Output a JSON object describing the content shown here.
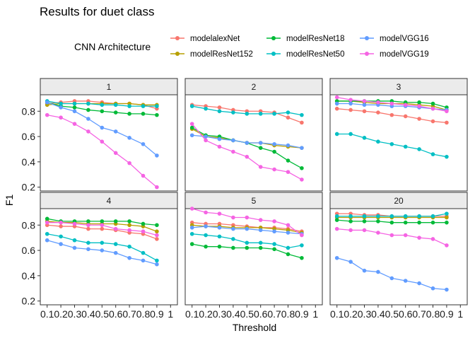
{
  "chart_data": {
    "type": "line",
    "title": "Results for duet class",
    "xlabel": "Threshold",
    "ylabel": "F1",
    "legend": {
      "title": "CNN Architecture",
      "placement": "top",
      "entries": [
        "modelalexNet",
        "modelResNet152",
        "modelResNet18",
        "modelResNet50",
        "modelVGG16",
        "modelVGG19"
      ]
    },
    "x_ticks": [
      "0.1",
      "0.2",
      "0.3",
      "0.4",
      "0.5",
      "0.6",
      "0.7",
      "0.8",
      "0.9",
      "1"
    ],
    "y_ticks": [
      "0.2",
      "0.4",
      "0.6",
      "0.8"
    ],
    "xlim": [
      0.05,
      1.05
    ],
    "ylim": [
      0.17,
      0.93
    ],
    "grid": false,
    "colors": {
      "modelalexNet": "#F8766D",
      "modelResNet152": "#B79F00",
      "modelResNet18": "#00BA38",
      "modelResNet50": "#00BFC4",
      "modelVGG16": "#619CFF",
      "modelVGG19": "#F564E3",
      "strip_fill": "#EBEBEB",
      "panel_border": "#333333"
    },
    "x": [
      0.1,
      0.2,
      0.3,
      0.4,
      0.5,
      0.6,
      0.7,
      0.8,
      0.9
    ],
    "facets": [
      {
        "label": "1",
        "series": [
          {
            "name": "modelalexNet",
            "values": [
              0.86,
              0.87,
              0.88,
              0.88,
              0.87,
              0.86,
              0.86,
              0.85,
              0.82
            ]
          },
          {
            "name": "modelResNet152",
            "values": [
              0.85,
              0.86,
              0.86,
              0.86,
              0.86,
              0.86,
              0.86,
              0.85,
              0.85
            ]
          },
          {
            "name": "modelResNet18",
            "values": [
              0.87,
              0.84,
              0.83,
              0.81,
              0.8,
              0.79,
              0.78,
              0.78,
              0.77
            ]
          },
          {
            "name": "modelResNet50",
            "values": [
              0.88,
              0.86,
              0.86,
              0.86,
              0.85,
              0.85,
              0.84,
              0.84,
              0.84
            ]
          },
          {
            "name": "modelVGG16",
            "values": [
              0.87,
              0.83,
              0.8,
              0.74,
              0.67,
              0.64,
              0.59,
              0.54,
              0.45
            ]
          },
          {
            "name": "modelVGG19",
            "values": [
              0.77,
              0.75,
              0.7,
              0.64,
              0.56,
              0.47,
              0.39,
              0.29,
              0.2
            ]
          }
        ]
      },
      {
        "label": "2",
        "series": [
          {
            "name": "modelalexNet",
            "values": [
              0.85,
              0.84,
              0.83,
              0.81,
              0.8,
              0.8,
              0.79,
              0.75,
              0.71
            ]
          },
          {
            "name": "modelResNet152",
            "values": [
              0.66,
              0.6,
              0.59,
              0.57,
              0.55,
              0.55,
              0.53,
              0.52,
              0.51
            ]
          },
          {
            "name": "modelResNet18",
            "values": [
              0.67,
              0.61,
              0.6,
              0.57,
              0.55,
              0.51,
              0.48,
              0.41,
              0.35
            ]
          },
          {
            "name": "modelResNet50",
            "values": [
              0.84,
              0.82,
              0.8,
              0.79,
              0.78,
              0.78,
              0.78,
              0.79,
              0.77
            ]
          },
          {
            "name": "modelVGG16",
            "values": [
              0.61,
              0.6,
              0.58,
              0.57,
              0.55,
              0.55,
              0.54,
              0.53,
              0.51
            ]
          },
          {
            "name": "modelVGG19",
            "values": [
              0.7,
              0.57,
              0.52,
              0.48,
              0.44,
              0.36,
              0.34,
              0.32,
              0.26
            ]
          }
        ]
      },
      {
        "label": "3",
        "series": [
          {
            "name": "modelalexNet",
            "values": [
              0.82,
              0.81,
              0.8,
              0.79,
              0.77,
              0.76,
              0.74,
              0.72,
              0.71
            ]
          },
          {
            "name": "modelResNet152",
            "values": [
              0.88,
              0.88,
              0.87,
              0.86,
              0.86,
              0.86,
              0.85,
              0.84,
              0.81
            ]
          },
          {
            "name": "modelResNet18",
            "values": [
              0.88,
              0.88,
              0.88,
              0.88,
              0.88,
              0.87,
              0.87,
              0.86,
              0.83
            ]
          },
          {
            "name": "modelResNet50",
            "values": [
              0.62,
              0.62,
              0.59,
              0.56,
              0.54,
              0.52,
              0.5,
              0.46,
              0.44
            ]
          },
          {
            "name": "modelVGG16",
            "values": [
              0.86,
              0.86,
              0.85,
              0.85,
              0.84,
              0.84,
              0.83,
              0.82,
              0.81
            ]
          },
          {
            "name": "modelVGG19",
            "values": [
              0.91,
              0.89,
              0.88,
              0.87,
              0.86,
              0.85,
              0.84,
              0.82,
              0.8
            ]
          }
        ]
      },
      {
        "label": "4",
        "series": [
          {
            "name": "modelalexNet",
            "values": [
              0.8,
              0.79,
              0.79,
              0.77,
              0.77,
              0.76,
              0.74,
              0.73,
              0.69
            ]
          },
          {
            "name": "modelResNet152",
            "values": [
              0.83,
              0.82,
              0.82,
              0.81,
              0.81,
              0.81,
              0.8,
              0.79,
              0.75
            ]
          },
          {
            "name": "modelResNet18",
            "values": [
              0.85,
              0.83,
              0.83,
              0.83,
              0.83,
              0.83,
              0.83,
              0.81,
              0.8
            ]
          },
          {
            "name": "modelResNet50",
            "values": [
              0.73,
              0.71,
              0.68,
              0.66,
              0.66,
              0.65,
              0.63,
              0.58,
              0.52
            ]
          },
          {
            "name": "modelVGG16",
            "values": [
              0.68,
              0.65,
              0.62,
              0.61,
              0.6,
              0.58,
              0.54,
              0.52,
              0.49
            ]
          },
          {
            "name": "modelVGG19",
            "values": [
              0.82,
              0.82,
              0.81,
              0.8,
              0.8,
              0.77,
              0.76,
              0.75,
              0.72
            ]
          }
        ]
      },
      {
        "label": "5",
        "series": [
          {
            "name": "modelalexNet",
            "values": [
              0.82,
              0.81,
              0.81,
              0.8,
              0.79,
              0.78,
              0.78,
              0.77,
              0.75
            ]
          },
          {
            "name": "modelResNet152",
            "values": [
              0.8,
              0.79,
              0.79,
              0.78,
              0.78,
              0.78,
              0.77,
              0.76,
              0.74
            ]
          },
          {
            "name": "modelResNet18",
            "values": [
              0.65,
              0.63,
              0.63,
              0.62,
              0.62,
              0.62,
              0.61,
              0.57,
              0.54
            ]
          },
          {
            "name": "modelResNet50",
            "values": [
              0.73,
              0.72,
              0.71,
              0.69,
              0.66,
              0.66,
              0.65,
              0.62,
              0.64
            ]
          },
          {
            "name": "modelVGG16",
            "values": [
              0.78,
              0.79,
              0.78,
              0.77,
              0.77,
              0.76,
              0.75,
              0.74,
              0.73
            ]
          },
          {
            "name": "modelVGG19",
            "values": [
              0.93,
              0.9,
              0.89,
              0.86,
              0.86,
              0.84,
              0.83,
              0.8,
              0.72
            ]
          }
        ]
      },
      {
        "label": "20",
        "series": [
          {
            "name": "modelalexNet",
            "values": [
              0.89,
              0.89,
              0.88,
              0.88,
              0.87,
              0.87,
              0.87,
              0.87,
              0.87
            ]
          },
          {
            "name": "modelResNet152",
            "values": [
              0.86,
              0.86,
              0.86,
              0.86,
              0.86,
              0.86,
              0.86,
              0.86,
              0.86
            ]
          },
          {
            "name": "modelResNet18",
            "values": [
              0.84,
              0.83,
              0.83,
              0.83,
              0.82,
              0.82,
              0.82,
              0.82,
              0.82
            ]
          },
          {
            "name": "modelResNet50",
            "values": [
              0.87,
              0.87,
              0.87,
              0.87,
              0.87,
              0.87,
              0.87,
              0.87,
              0.89
            ]
          },
          {
            "name": "modelVGG16",
            "values": [
              0.54,
              0.51,
              0.44,
              0.43,
              0.38,
              0.36,
              0.34,
              0.3,
              0.29
            ]
          },
          {
            "name": "modelVGG19",
            "values": [
              0.77,
              0.76,
              0.76,
              0.74,
              0.72,
              0.72,
              0.7,
              0.69,
              0.64
            ]
          }
        ]
      }
    ]
  }
}
